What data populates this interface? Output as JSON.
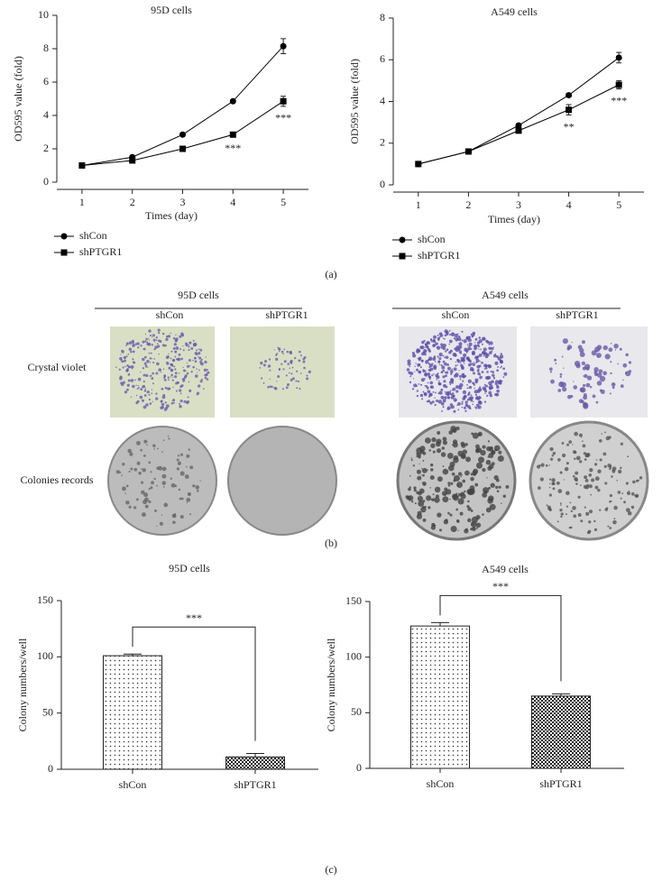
{
  "chart_data": [
    {
      "type": "line",
      "title": "95D cells",
      "x_label": "Times (day)",
      "y_label": "OD595 value (fold)",
      "x": [
        1,
        2,
        3,
        4,
        5
      ],
      "xlim": [
        0.5,
        5.5
      ],
      "xticks": [
        1,
        2,
        3,
        4,
        5
      ],
      "ylim": [
        0,
        10
      ],
      "yticks": [
        0,
        2,
        4,
        6,
        8,
        10
      ],
      "series": [
        {
          "name": "shCon",
          "color": "#000000",
          "marker": "circle",
          "values": [
            1,
            1.5,
            2.85,
            4.85,
            8.15
          ],
          "errors": [
            0.05,
            0.05,
            0.08,
            0.08,
            0.45
          ]
        },
        {
          "name": "shPTGR1",
          "color": "#000000",
          "marker": "square",
          "values": [
            1,
            1.3,
            2,
            2.85,
            4.85
          ],
          "errors": [
            0.05,
            0.05,
            0.08,
            0.1,
            0.3
          ]
        }
      ],
      "annotations": [
        {
          "text": "***",
          "x": 4
        },
        {
          "text": "***",
          "x": 5
        }
      ]
    },
    {
      "type": "line",
      "title": "A549 cells",
      "x_label": "Times (day)",
      "y_label": "OD595 value (fold)",
      "x": [
        1,
        2,
        3,
        4,
        5
      ],
      "xlim": [
        0.5,
        5.5
      ],
      "xticks": [
        1,
        2,
        3,
        4,
        5
      ],
      "ylim": [
        0,
        8
      ],
      "yticks": [
        0,
        2,
        4,
        6,
        8
      ],
      "series": [
        {
          "name": "shCon",
          "color": "#000000",
          "marker": "circle",
          "values": [
            1,
            1.6,
            2.85,
            4.3,
            6.1
          ],
          "errors": [
            0.05,
            0.05,
            0.08,
            0.08,
            0.25
          ]
        },
        {
          "name": "shPTGR1",
          "color": "#000000",
          "marker": "square",
          "values": [
            1,
            1.6,
            2.6,
            3.6,
            4.8
          ],
          "errors": [
            0.05,
            0.05,
            0.08,
            0.25,
            0.2
          ]
        }
      ],
      "annotations": [
        {
          "text": "**",
          "x": 4
        },
        {
          "text": "***",
          "x": 5
        }
      ]
    },
    {
      "type": "bar",
      "title": "95D cells",
      "y_label": "Colony numbers/well",
      "categories": [
        "shCon",
        "shPTGR1"
      ],
      "values": [
        101,
        11
      ],
      "errors": [
        1.5,
        3
      ],
      "patterns": [
        "dots",
        "checker"
      ],
      "ylim": [
        0,
        150
      ],
      "yticks": [
        0,
        50,
        100,
        150
      ],
      "annotation": "***"
    },
    {
      "type": "bar",
      "title": "A549 cells",
      "y_label": "Colony numbers/well",
      "categories": [
        "shCon",
        "shPTGR1"
      ],
      "values": [
        128,
        65
      ],
      "errors": [
        3,
        2
      ],
      "patterns": [
        "dots",
        "checker"
      ],
      "ylim": [
        0,
        150
      ],
      "yticks": [
        0,
        50,
        100,
        150
      ],
      "annotation": "***"
    }
  ],
  "panel_labels": [
    "(a)",
    "(b)",
    "(c)"
  ],
  "image_grid": {
    "groups": [
      {
        "title": "95D cells",
        "columns": [
          "shCon",
          "shPTGR1"
        ]
      },
      {
        "title": "A549 cells",
        "columns": [
          "shCon",
          "shPTGR1"
        ]
      }
    ],
    "rows": [
      "Crystal violet",
      "Colonies records"
    ]
  }
}
